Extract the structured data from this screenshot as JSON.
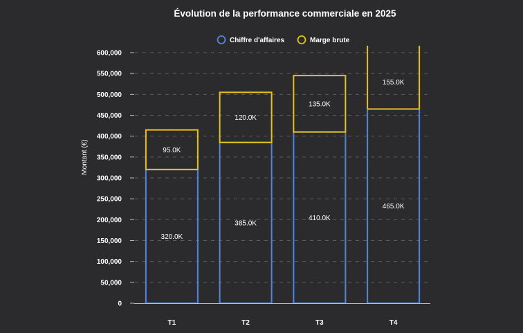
{
  "chart_data": {
    "type": "bar",
    "stacked": true,
    "title": "Évolution de la performance commerciale en 2025",
    "xlabel": "",
    "ylabel": "Montant (€)",
    "ylim": [
      0,
      600000
    ],
    "yticks": [
      0,
      50000,
      100000,
      150000,
      200000,
      250000,
      300000,
      350000,
      400000,
      450000,
      500000,
      550000,
      600000
    ],
    "ytick_labels": [
      "0",
      "50,000",
      "100,000",
      "150,000",
      "200,000",
      "250,000",
      "300,000",
      "350,000",
      "400,000",
      "450,000",
      "500,000",
      "550,000",
      "600,000"
    ],
    "grid": "horizontal dashed",
    "legend_position": "top-center",
    "categories": [
      "T1",
      "T2",
      "T3",
      "T4"
    ],
    "series": [
      {
        "name": "Chiffre d'affaires",
        "color": "#4f86e0",
        "values": [
          320000,
          385000,
          410000,
          465000
        ],
        "labels": [
          "320.0K",
          "385.0K",
          "410.0K",
          "465.0K"
        ]
      },
      {
        "name": "Marge brute",
        "color": "#e8c21a",
        "values": [
          95000,
          120000,
          135000,
          155000
        ],
        "labels": [
          "95.0K",
          "120.0K",
          "135.0K",
          "155.0K"
        ]
      }
    ]
  }
}
